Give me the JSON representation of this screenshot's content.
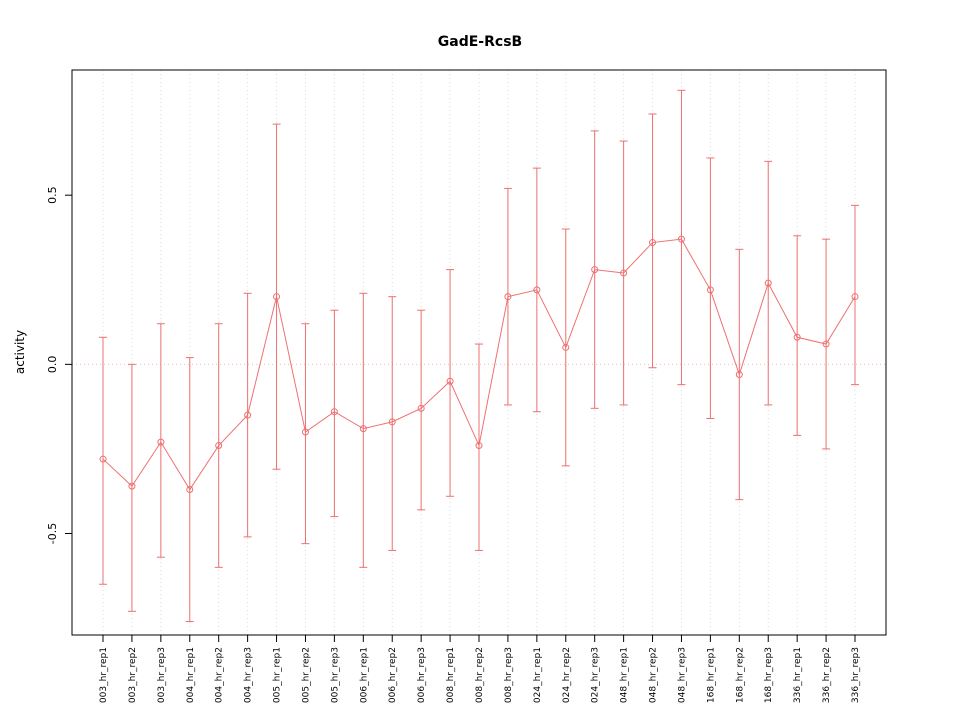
{
  "title": "GadE-RcsB",
  "chart_data": {
    "type": "line",
    "title": "GadE-RcsB",
    "xlabel": "",
    "ylabel": "activity",
    "ylim": [
      -0.8,
      0.87
    ],
    "yticks": [
      -0.5,
      0.0,
      0.5
    ],
    "ytick_labels": [
      "-0.5",
      "0.0",
      "0.5"
    ],
    "grid": "dotted vertical line at each category; dotted horizontal reference line at y=0",
    "legend": "none",
    "marker": "open-circle",
    "error_bars": true,
    "colors": {
      "series": "#ee7070",
      "grid": "#d9d9d9",
      "zero_line": "#f2bdbd",
      "axis": "#000000"
    },
    "categories": [
      "003_hr_rep1",
      "003_hr_rep2",
      "003_hr_rep3",
      "004_hr_rep1",
      "004_hr_rep2",
      "004_hr_rep3",
      "005_hr_rep1",
      "005_hr_rep2",
      "005_hr_rep3",
      "006_hr_rep1",
      "006_hr_rep2",
      "006_hr_rep3",
      "008_hr_rep1",
      "008_hr_rep2",
      "008_hr_rep3",
      "024_hr_rep1",
      "024_hr_rep2",
      "024_hr_rep3",
      "048_hr_rep1",
      "048_hr_rep2",
      "048_hr_rep3",
      "168_hr_rep1",
      "168_hr_rep2",
      "168_hr_rep3",
      "336_hr_rep1",
      "336_hr_rep2",
      "336_hr_rep3"
    ],
    "values": [
      -0.28,
      -0.36,
      -0.23,
      -0.37,
      -0.24,
      -0.15,
      0.2,
      -0.2,
      -0.14,
      -0.19,
      -0.17,
      -0.13,
      -0.05,
      -0.24,
      0.2,
      0.22,
      0.05,
      0.28,
      0.27,
      0.36,
      0.37,
      0.22,
      -0.03,
      0.24,
      0.08,
      0.06,
      0.2
    ],
    "error_low": [
      -0.65,
      -0.73,
      -0.57,
      -0.76,
      -0.6,
      -0.51,
      -0.31,
      -0.53,
      -0.45,
      -0.6,
      -0.55,
      -0.43,
      -0.39,
      -0.55,
      -0.12,
      -0.14,
      -0.3,
      -0.13,
      -0.12,
      -0.01,
      -0.06,
      -0.16,
      -0.4,
      -0.12,
      -0.21,
      -0.25,
      -0.06
    ],
    "error_high": [
      0.08,
      0.0,
      0.12,
      0.02,
      0.12,
      0.21,
      0.71,
      0.12,
      0.16,
      0.21,
      0.2,
      0.16,
      0.28,
      0.06,
      0.52,
      0.58,
      0.4,
      0.69,
      0.66,
      0.74,
      0.81,
      0.61,
      0.34,
      0.6,
      0.38,
      0.37,
      0.47
    ]
  }
}
